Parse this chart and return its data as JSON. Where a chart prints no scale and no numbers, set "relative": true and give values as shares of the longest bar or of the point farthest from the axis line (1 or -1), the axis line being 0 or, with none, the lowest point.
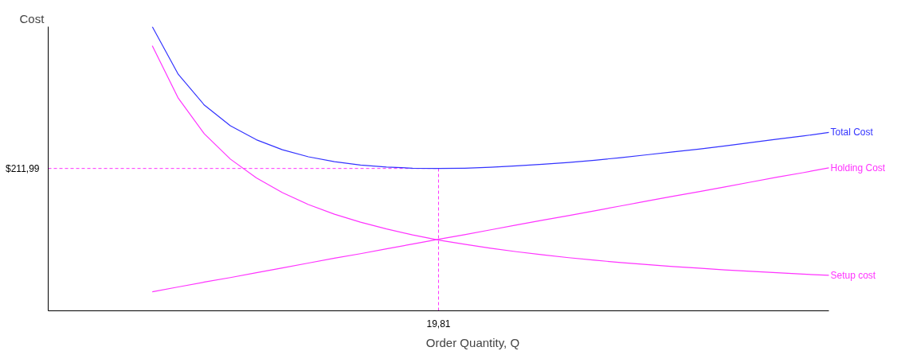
{
  "chart_data": {
    "type": "line",
    "relative": true,
    "xlabel": "Order Quantity, Q",
    "ylabel": "Cost",
    "categories": [
      null,
      null,
      null,
      null,
      null,
      null,
      null,
      null,
      null,
      null,
      null,
      null,
      null,
      null,
      null,
      null,
      null,
      null,
      null,
      null,
      null,
      null,
      null,
      null,
      null,
      null,
      null,
      null,
      null,
      null,
      null
    ],
    "series": [
      {
        "name": "Total Cost",
        "color": "#3333ff",
        "values": [
          null,
          null,
          null,
          null,
          1.0,
          0.832,
          0.724,
          0.651,
          0.602,
          0.567,
          0.542,
          0.525,
          0.513,
          0.506,
          0.502,
          0.501,
          0.502,
          0.505,
          0.51,
          0.516,
          0.522,
          0.53,
          0.539,
          0.549,
          0.559,
          0.569,
          0.58,
          0.592,
          0.604,
          0.615,
          0.628
        ]
      },
      {
        "name": "Holding Cost",
        "color": "#ff33ff",
        "values": [
          null,
          null,
          null,
          null,
          0.067,
          0.084,
          0.101,
          0.117,
          0.134,
          0.151,
          0.168,
          0.185,
          0.201,
          0.218,
          0.235,
          0.252,
          0.268,
          0.285,
          0.302,
          0.319,
          0.335,
          0.352,
          0.369,
          0.386,
          0.403,
          0.419,
          0.436,
          0.453,
          0.47,
          0.486,
          0.503
        ]
      },
      {
        "name": "Setup cost",
        "color": "#ff33ff",
        "values": [
          null,
          null,
          null,
          null,
          0.933,
          0.748,
          0.623,
          0.534,
          0.468,
          0.416,
          0.374,
          0.34,
          0.312,
          0.288,
          0.267,
          0.249,
          0.234,
          0.22,
          0.208,
          0.197,
          0.187,
          0.178,
          0.17,
          0.163,
          0.156,
          0.15,
          0.144,
          0.139,
          0.134,
          0.129,
          0.125
        ]
      }
    ],
    "ref_lines": [
      {
        "axis": "y",
        "value": 0.501,
        "color": "#ff33ff",
        "line_style": "dashed"
      }
    ],
    "annotations": [
      "$211,99",
      "19,81"
    ],
    "marker": "none",
    "line_style": "solid"
  }
}
